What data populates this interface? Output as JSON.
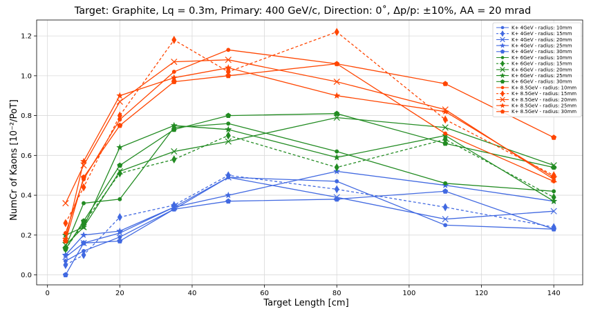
{
  "chart_data": {
    "type": "line",
    "title": "Target: Graphite, Lq = 0.3m, Primary: 400 GeV/c, Direction: 0˚, Δp/p: ±10%, AA = 20 mrad",
    "xlabel": "Target Length [cm]",
    "ylabel": "NumCr of Kaons [10⁻²/PoT]",
    "xlim": [
      -3,
      148
    ],
    "ylim": [
      -0.05,
      1.28
    ],
    "xticks": [
      0,
      20,
      40,
      60,
      80,
      100,
      120,
      140
    ],
    "yticks": [
      0.0,
      0.2,
      0.4,
      0.6,
      0.8,
      1.0,
      1.2
    ],
    "grid": true,
    "legend_position": "top-right",
    "x": [
      5,
      10,
      20,
      35,
      50,
      80,
      110,
      140
    ],
    "series": [
      {
        "name": "K+ 4GeV - radius: 10mm",
        "color": "#4169e1",
        "marker": "circle",
        "dash": "solid",
        "values": [
          0.07,
          0.12,
          0.19,
          0.33,
          0.49,
          0.47,
          0.25,
          0.23
        ]
      },
      {
        "name": "K+ 4GeV - radius: 15mm",
        "color": "#4169e1",
        "marker": "diamond",
        "dash": "dashed",
        "values": [
          0.05,
          0.1,
          0.29,
          0.35,
          0.5,
          0.43,
          0.34,
          0.24
        ]
      },
      {
        "name": "K+ 4GeV - radius: 20mm",
        "color": "#4169e1",
        "marker": "x",
        "dash": "solid",
        "values": [
          0.09,
          0.16,
          0.21,
          0.34,
          0.49,
          0.39,
          0.28,
          0.32
        ]
      },
      {
        "name": "K+ 4GeV - radius: 25mm",
        "color": "#4169e1",
        "marker": "star",
        "dash": "solid",
        "values": [
          0.1,
          0.2,
          0.22,
          0.34,
          0.4,
          0.52,
          0.45,
          0.37
        ]
      },
      {
        "name": "K+ 4GeV - radius: 30mm",
        "color": "#4169e1",
        "marker": "pentagon",
        "dash": "solid",
        "values": [
          0.0,
          0.16,
          0.17,
          0.33,
          0.37,
          0.38,
          0.42,
          0.23
        ]
      },
      {
        "name": "K+ 6GeV - radius: 10mm",
        "color": "#228b22",
        "marker": "circle",
        "dash": "solid",
        "values": [
          0.14,
          0.36,
          0.38,
          0.74,
          0.76,
          0.62,
          0.46,
          0.42
        ]
      },
      {
        "name": "K+ 6GeV - radius: 15mm",
        "color": "#228b22",
        "marker": "diamond",
        "dash": "dashed",
        "values": [
          0.13,
          0.26,
          0.51,
          0.58,
          0.7,
          0.54,
          0.68,
          0.39
        ]
      },
      {
        "name": "K+ 6GeV - radius: 20mm",
        "color": "#228b22",
        "marker": "x",
        "dash": "solid",
        "values": [
          0.15,
          0.24,
          0.52,
          0.62,
          0.67,
          0.79,
          0.74,
          0.55
        ]
      },
      {
        "name": "K+ 6GeV - radius: 25mm",
        "color": "#228b22",
        "marker": "star",
        "dash": "solid",
        "values": [
          0.2,
          0.24,
          0.64,
          0.75,
          0.73,
          0.59,
          0.7,
          0.37
        ]
      },
      {
        "name": "K+ 6GeV - radius: 30mm",
        "color": "#228b22",
        "marker": "pentagon",
        "dash": "solid",
        "values": [
          0.13,
          0.27,
          0.55,
          0.73,
          0.8,
          0.81,
          0.66,
          0.54
        ]
      },
      {
        "name": "K+ 8.5GeV - radius: 10mm",
        "color": "#ff4500",
        "marker": "circle",
        "dash": "solid",
        "values": [
          0.21,
          0.48,
          0.78,
          1.02,
          1.13,
          1.06,
          0.71,
          0.47
        ]
      },
      {
        "name": "K+ 8.5GeV - radius: 15mm",
        "color": "#ff4500",
        "marker": "diamond",
        "dash": "dashed",
        "values": [
          0.26,
          0.44,
          0.8,
          1.18,
          1.02,
          1.22,
          0.78,
          0.5
        ]
      },
      {
        "name": "K+ 8.5GeV - radius: 20mm",
        "color": "#ff4500",
        "marker": "x",
        "dash": "solid",
        "values": [
          0.36,
          0.55,
          0.87,
          1.07,
          1.08,
          0.97,
          0.83,
          0.48
        ]
      },
      {
        "name": "K+ 8.5GeV - radius: 25mm",
        "color": "#ff4500",
        "marker": "star",
        "dash": "solid",
        "values": [
          0.18,
          0.57,
          0.9,
          0.99,
          1.04,
          0.9,
          0.82,
          0.49
        ]
      },
      {
        "name": "K+ 8.5GeV - radius: 30mm",
        "color": "#ff4500",
        "marker": "pentagon",
        "dash": "solid",
        "values": [
          0.17,
          0.49,
          0.75,
          0.97,
          1.0,
          1.06,
          0.96,
          0.69
        ]
      }
    ]
  }
}
